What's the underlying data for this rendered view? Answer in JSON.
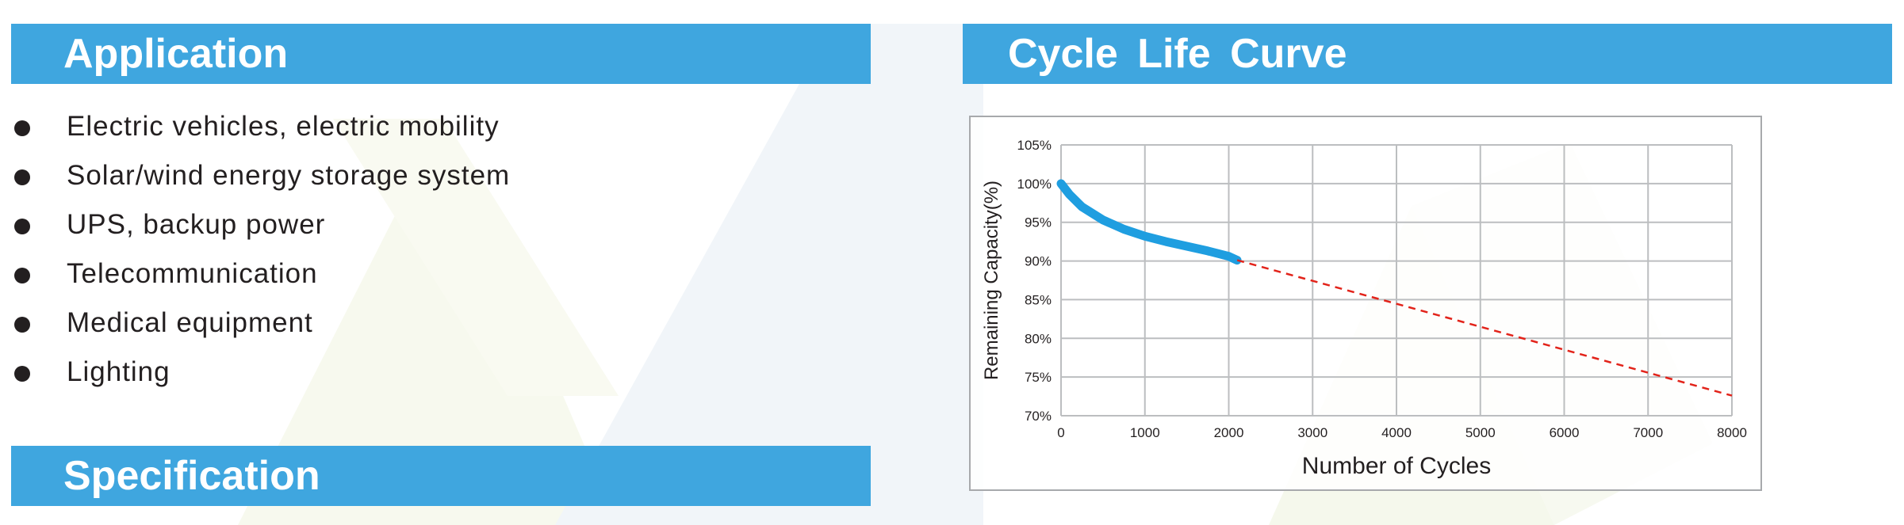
{
  "sections": {
    "application_title": "Application",
    "specification_title": "Specification",
    "cycle_title": "Cycle  Life  Curve"
  },
  "application_items": [
    "Electric vehicles, electric mobility",
    "Solar/wind energy storage system",
    "UPS, backup power",
    "Telecommunication",
    "Medical equipment",
    "Lighting"
  ],
  "colors": {
    "banner": "#3fa6df",
    "measured_curve": "#1f9ee0",
    "projected_line": "#e2231a",
    "grid": "#bcbec0"
  },
  "chart_data": {
    "type": "line",
    "xlabel": "Number of Cycles",
    "ylabel": "Remaining Capacity(%)",
    "xlim": [
      0,
      8000
    ],
    "ylim": [
      70,
      105
    ],
    "x_ticks": [
      "0",
      "1000",
      "2000",
      "3000",
      "4000",
      "5000",
      "6000",
      "7000",
      "8000"
    ],
    "y_ticks": [
      "105%",
      "100%",
      "95%",
      "90%",
      "85%",
      "80%",
      "75%",
      "70%"
    ],
    "grid": true,
    "series": [
      {
        "style": "solid",
        "x": [
          0,
          100,
          250,
          500,
          750,
          1000,
          1250,
          1500,
          1750,
          2000,
          2100
        ],
        "y": [
          100,
          98.6,
          97,
          95.3,
          94.1,
          93.2,
          92.5,
          91.9,
          91.3,
          90.6,
          90.1
        ]
      },
      {
        "style": "dashed",
        "x": [
          2100,
          8000
        ],
        "y": [
          90.1,
          72.6
        ]
      }
    ]
  }
}
